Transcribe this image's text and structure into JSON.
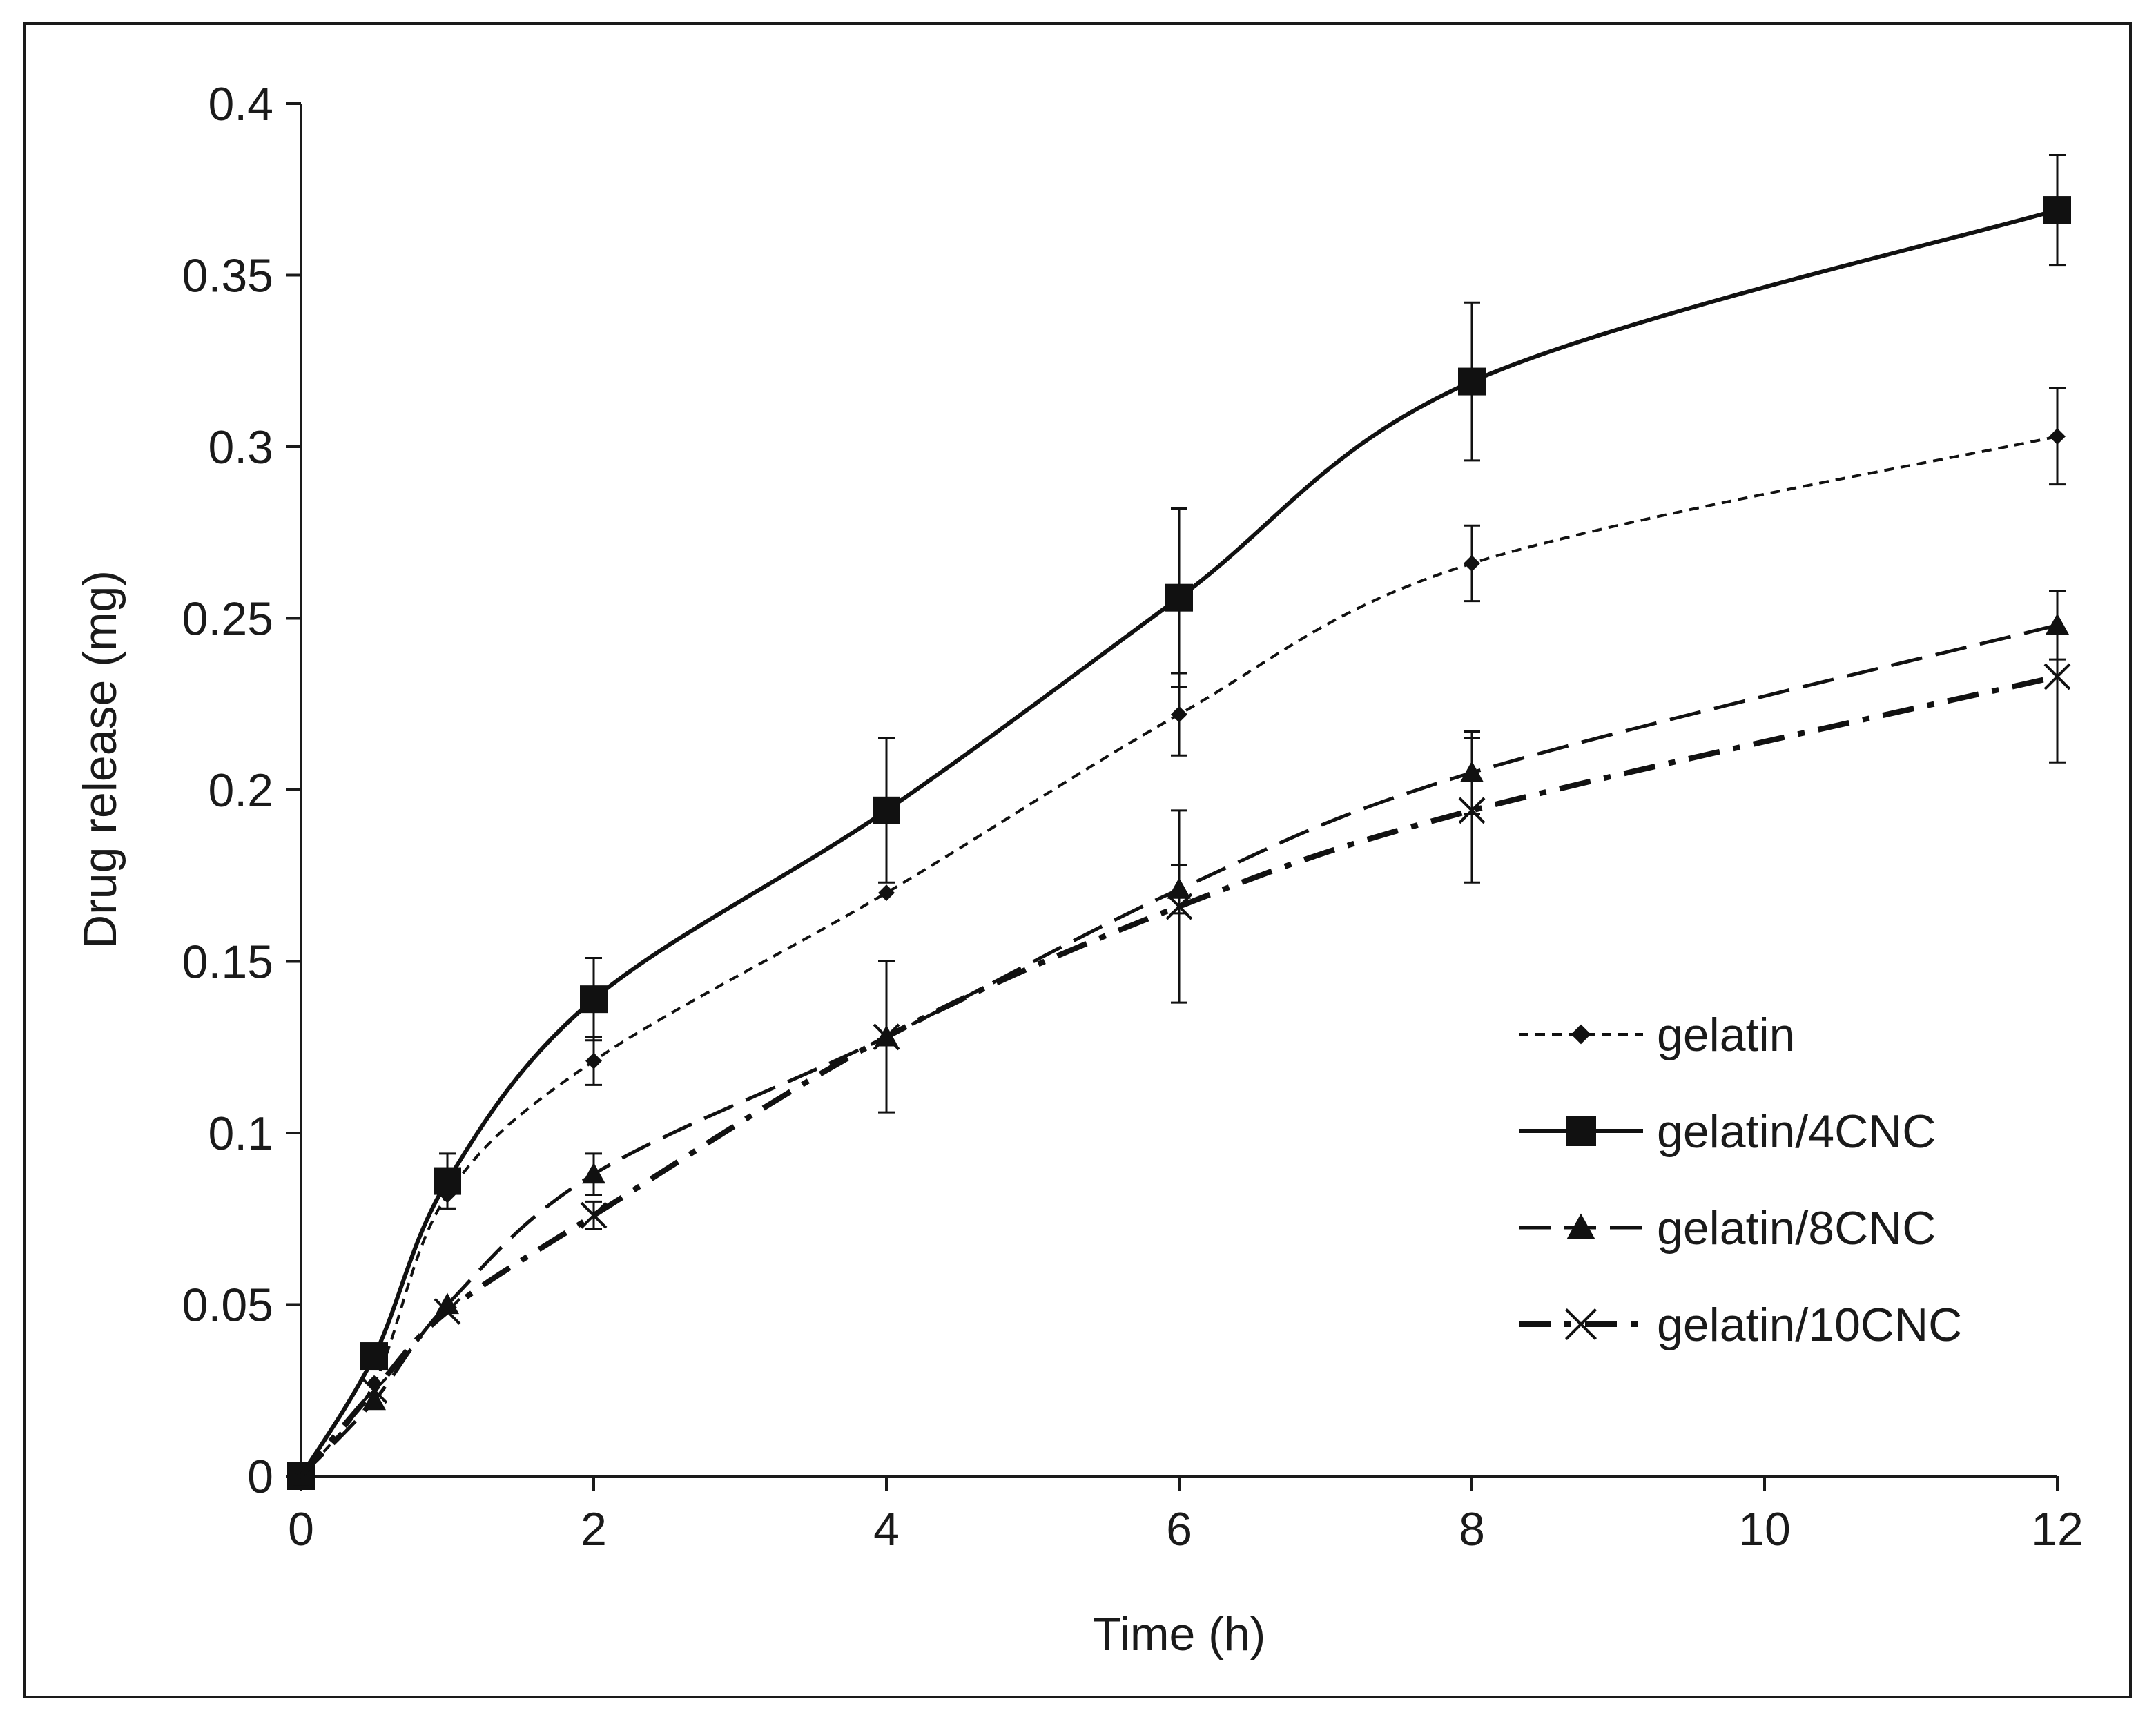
{
  "chart_data": {
    "type": "line",
    "title": "",
    "xlabel": "Time (h)",
    "ylabel": "Drug release (mg)",
    "xlim": [
      0,
      12
    ],
    "ylim": [
      0,
      0.4
    ],
    "xticks": [
      0,
      2,
      4,
      6,
      8,
      10,
      12
    ],
    "xtick_labels": [
      "0",
      "2",
      "4",
      "6",
      "8",
      "10",
      "12"
    ],
    "yticks": [
      0,
      0.05,
      0.1,
      0.15,
      0.2,
      0.25,
      0.3,
      0.35,
      0.4
    ],
    "ytick_labels": [
      "0",
      "0.05",
      "0.1",
      "0.15",
      "0.2",
      "0.25",
      "0.3",
      "0.35",
      "0.4"
    ],
    "grid": false,
    "legend_position": "center-right",
    "x": [
      0,
      0.5,
      1,
      2,
      4,
      6,
      8,
      12
    ],
    "series": [
      {
        "name": "gelatin",
        "line_style": "dotted",
        "marker": "diamond",
        "values": [
          0,
          0.027,
          0.082,
          0.121,
          0.17,
          0.222,
          0.266,
          0.303
        ],
        "errors": [
          0,
          0,
          0.004,
          0.007,
          0,
          0.012,
          0.011,
          0.014
        ]
      },
      {
        "name": "gelatin/4CNC",
        "line_style": "solid",
        "marker": "square",
        "values": [
          0,
          0.035,
          0.086,
          0.139,
          0.194,
          0.256,
          0.319,
          0.369
        ],
        "errors": [
          0,
          0,
          0.008,
          0.012,
          0.021,
          0.026,
          0.023,
          0.016
        ]
      },
      {
        "name": "gelatin/8CNC",
        "line_style": "dashed",
        "marker": "triangle",
        "values": [
          0,
          0.022,
          0.05,
          0.088,
          0.128,
          0.171,
          0.205,
          0.248
        ],
        "errors": [
          0,
          0,
          0,
          0.006,
          0,
          0.007,
          0.012,
          0.01
        ]
      },
      {
        "name": "gelatin/10CNC",
        "line_style": "dash-dot",
        "marker": "x",
        "values": [
          0,
          0.025,
          0.048,
          0.076,
          0.128,
          0.166,
          0.194,
          0.233
        ],
        "errors": [
          0,
          0,
          0,
          0.004,
          0.022,
          0.028,
          0.021,
          0.025
        ]
      }
    ]
  }
}
